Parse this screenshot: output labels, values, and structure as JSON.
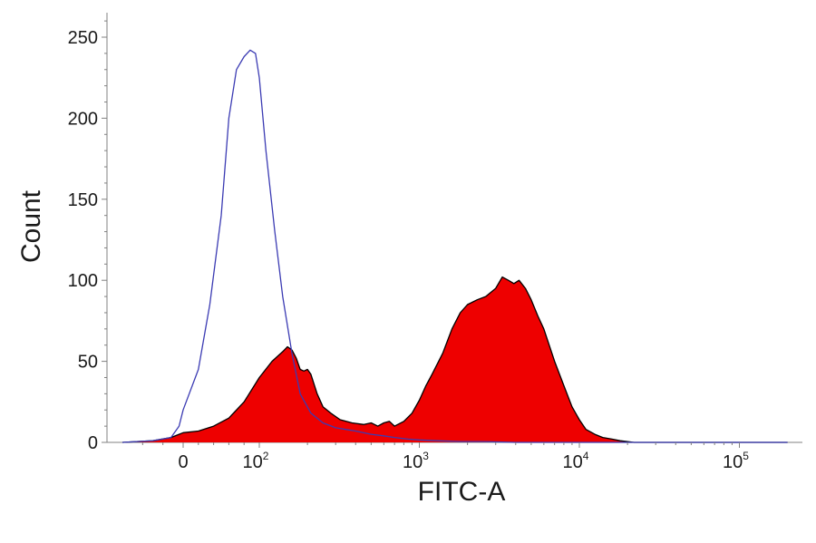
{
  "chart_data": {
    "type": "area",
    "title": "",
    "xlabel": "FITC-A",
    "ylabel": "Count",
    "x_scale": "biexponential",
    "xlim": [
      -300,
      200000
    ],
    "ylim": [
      0,
      260
    ],
    "y_ticks": [
      {
        "value": 0,
        "label": "0"
      },
      {
        "value": 50,
        "label": "50"
      },
      {
        "value": 100,
        "label": "100"
      },
      {
        "value": 150,
        "label": "150"
      },
      {
        "value": 200,
        "label": "200"
      },
      {
        "value": 250,
        "label": "250"
      }
    ],
    "x_ticks": [
      {
        "value": 0,
        "base": "0",
        "exp": ""
      },
      {
        "value": 100,
        "base": "10",
        "exp": "2"
      },
      {
        "value": 1000,
        "base": "10",
        "exp": "3"
      },
      {
        "value": 10000,
        "base": "10",
        "exp": "4"
      },
      {
        "value": 100000,
        "base": "10",
        "exp": "5"
      }
    ],
    "grid": false,
    "legend": "none",
    "series": [
      {
        "style": "outline",
        "color": "#3b3bb3",
        "x": [
          -300,
          -150,
          -60,
          -20,
          0,
          20,
          35,
          50,
          60,
          70,
          80,
          88,
          95,
          100,
          110,
          125,
          140,
          160,
          180,
          210,
          250,
          300,
          400,
          500,
          600,
          700,
          850,
          1000,
          1300,
          1800,
          2500,
          4000,
          6000,
          10000,
          20000,
          50000,
          200000
        ],
        "y": [
          0,
          1,
          3,
          10,
          20,
          45,
          85,
          140,
          200,
          230,
          238,
          242,
          240,
          225,
          180,
          130,
          90,
          55,
          30,
          18,
          12,
          9,
          7,
          5,
          4,
          3,
          2,
          1.5,
          1,
          0.5,
          0.5,
          0,
          0,
          0,
          0,
          0,
          0
        ]
      },
      {
        "style": "filled",
        "color": "#ee0000",
        "edge": "#000000",
        "x": [
          -300,
          -150,
          -60,
          -20,
          0,
          20,
          40,
          60,
          80,
          100,
          120,
          140,
          150,
          160,
          170,
          180,
          190,
          200,
          210,
          230,
          250,
          280,
          320,
          380,
          450,
          500,
          550,
          600,
          650,
          700,
          800,
          900,
          1000,
          1100,
          1200,
          1400,
          1600,
          1800,
          2000,
          2300,
          2600,
          3000,
          3300,
          3600,
          3900,
          4200,
          4600,
          5000,
          5500,
          6000,
          7000,
          8000,
          9000,
          10000,
          11000,
          12500,
          14000,
          16000,
          18000,
          22000,
          30000,
          60000,
          200000
        ],
        "y": [
          0,
          1,
          3,
          5,
          6,
          7,
          10,
          15,
          25,
          40,
          50,
          56,
          59,
          57,
          52,
          45,
          44,
          45,
          42,
          30,
          22,
          18,
          14,
          12,
          11,
          12,
          10,
          12,
          13,
          10,
          13,
          18,
          26,
          35,
          42,
          55,
          70,
          80,
          85,
          88,
          90,
          95,
          102,
          100,
          98,
          100,
          95,
          88,
          78,
          70,
          50,
          35,
          22,
          14,
          8,
          5,
          3,
          2,
          1,
          0,
          0,
          0,
          0
        ]
      }
    ]
  }
}
